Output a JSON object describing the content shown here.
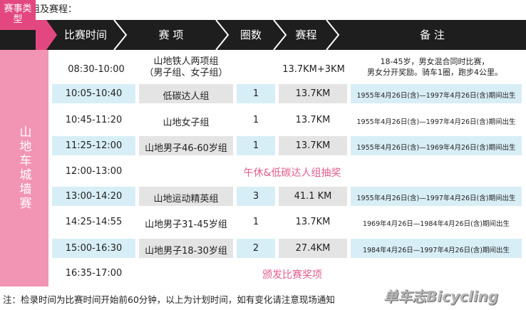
{
  "intro": "比赛分组及赛程：",
  "header": {
    "type": "赛事类型",
    "time": "比赛时间",
    "event": "赛 项",
    "laps": "圈数",
    "distance": "赛程",
    "note": "备 注"
  },
  "side_label": "山地车城墙赛",
  "rows": [
    {
      "time": "08:30-10:00",
      "event_line1": "山地铁人两项组",
      "event_line2": "（男子组、女子组）",
      "laps": "",
      "distance": "13.7KM+3KM",
      "note_line1": "18-45岁，男女混合同时比赛，",
      "note_line2": "男女分开奖励。骑车1圈，跑步4公里。"
    },
    {
      "time": "10:05-10:40",
      "event": "低碳达人组",
      "laps": "1",
      "distance": "13.7KM",
      "note": "1955年4月26日(含)—1997年4月26日(含)期间出生"
    },
    {
      "time": "10:45-11:20",
      "event": "山地女子组",
      "laps": "1",
      "distance": "13.7KM",
      "note": "1955年4月26日(含)—1997年4月26日(含)期间出生"
    },
    {
      "time": "11:25-12:00",
      "event": "山地男子46-60岁组",
      "laps": "1",
      "distance": "13.7KM",
      "note": "1955年4月26日(含)—1969年4月26日(含)期间出生"
    },
    {
      "time": "12:00-13:00",
      "break": "午休&低碳达人组抽奖"
    },
    {
      "time": "13:00-14:20",
      "event": "山地运动精英组",
      "laps": "3",
      "distance": "41.1 KM",
      "note": "1955年4月26日(含)—1997年4月26日(含)期间出生"
    },
    {
      "time": "14:25-14:55",
      "event": "山地男子31-45岁组",
      "laps": "1",
      "distance": "13.7KM",
      "note": "1969年4月26日—1984年4月26日(含)期间出生"
    },
    {
      "time": "15:00-16:30",
      "event": "山地男子18-30岁组",
      "laps": "2",
      "distance": "27.4KM",
      "note": "1984年4月26日—1997年4月26日(含)期间出生"
    },
    {
      "time": "16:35-17:00",
      "break": "颁发比赛奖项"
    }
  ],
  "footnote": "注：检录时间为比赛时间开始前60分钟，以上为计划时间，如有变化请注意现场通知",
  "logo": "单车志Bicycling",
  "colors": {
    "header_dark": "#1e1e1e",
    "pink": "#e2487f",
    "pink_light": "#f294b3",
    "row_blue": "#d8eef6",
    "cell_grey": "#e4e4e4",
    "break_text": "#e25c8c"
  }
}
